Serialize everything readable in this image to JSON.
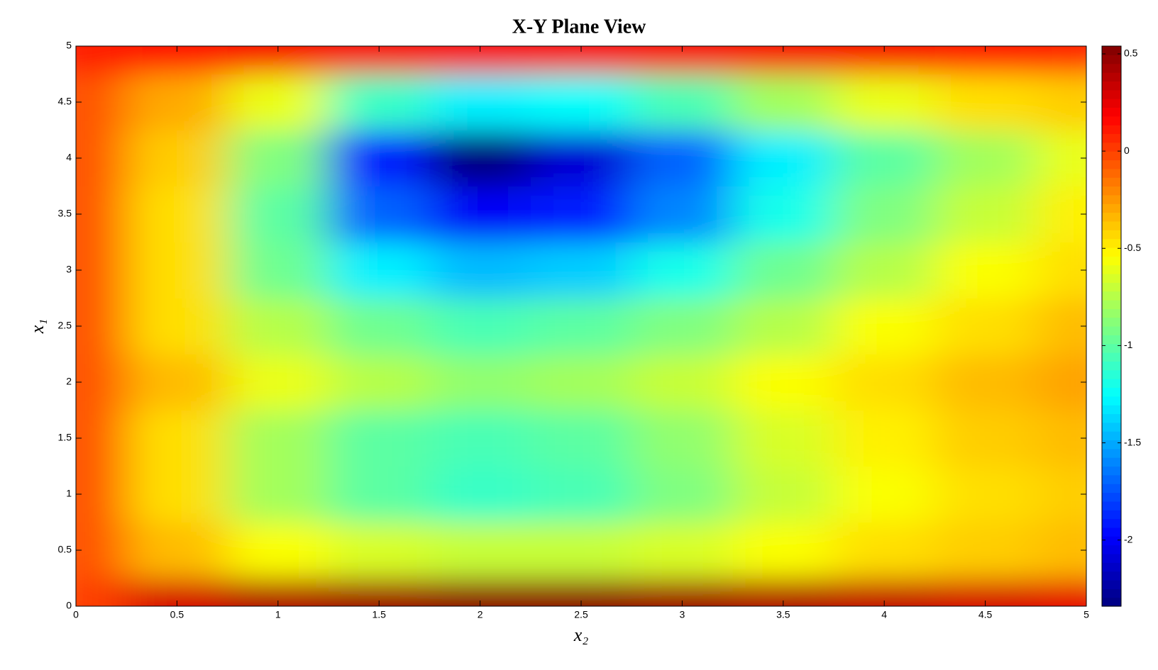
{
  "chart_data": {
    "type": "heatmap",
    "title": "X-Y Plane View",
    "xlabel": "x₂",
    "ylabel": "x₁",
    "x": [
      0,
      0.5,
      1,
      1.5,
      2,
      2.5,
      3,
      3.5,
      4,
      4.5,
      5
    ],
    "y": [
      0,
      0.5,
      1,
      1.5,
      2,
      2.5,
      3,
      3.5,
      4,
      4.5,
      5
    ],
    "z": [
      [
        0.0,
        0.3,
        0.4,
        0.45,
        0.5,
        0.5,
        0.45,
        0.4,
        0.35,
        0.3,
        0.25
      ],
      [
        -0.05,
        -0.35,
        -0.55,
        -0.65,
        -0.7,
        -0.7,
        -0.65,
        -0.55,
        -0.45,
        -0.4,
        -0.35
      ],
      [
        -0.05,
        -0.45,
        -0.8,
        -1.0,
        -1.1,
        -1.05,
        -0.9,
        -0.7,
        -0.55,
        -0.45,
        -0.4
      ],
      [
        -0.05,
        -0.45,
        -0.8,
        -1.0,
        -1.05,
        -1.0,
        -0.85,
        -0.65,
        -0.5,
        -0.4,
        -0.35
      ],
      [
        -0.05,
        -0.35,
        -0.6,
        -0.75,
        -0.85,
        -0.8,
        -0.7,
        -0.55,
        -0.45,
        -0.35,
        -0.28
      ],
      [
        -0.05,
        -0.45,
        -0.75,
        -0.95,
        -1.05,
        -1.0,
        -0.9,
        -0.75,
        -0.55,
        -0.45,
        -0.35
      ],
      [
        -0.05,
        -0.45,
        -0.95,
        -1.3,
        -1.45,
        -1.4,
        -1.2,
        -0.95,
        -0.75,
        -0.55,
        -0.45
      ],
      [
        -0.05,
        -0.45,
        -1.0,
        -1.7,
        -2.0,
        -1.9,
        -1.6,
        -1.2,
        -0.9,
        -0.7,
        -0.5
      ],
      [
        -0.05,
        -0.4,
        -0.9,
        -1.9,
        -2.34,
        -2.1,
        -1.7,
        -1.3,
        -1.0,
        -0.8,
        -0.6
      ],
      [
        -0.05,
        -0.3,
        -0.6,
        -1.1,
        -1.3,
        -1.25,
        -1.05,
        -0.8,
        -0.6,
        -0.45,
        -0.4
      ],
      [
        0.1,
        0.15,
        0.2,
        0.2,
        0.2,
        0.2,
        0.2,
        0.2,
        0.2,
        0.15,
        0.1
      ]
    ],
    "xlim": [
      0,
      5
    ],
    "ylim": [
      0,
      5
    ],
    "xticks": [
      0,
      0.5,
      1,
      1.5,
      2,
      2.5,
      3,
      3.5,
      4,
      4.5,
      5
    ],
    "yticks": [
      0,
      0.5,
      1,
      1.5,
      2,
      2.5,
      3,
      3.5,
      4,
      4.5,
      5
    ],
    "colormap": "jet",
    "clim": [
      -2.34,
      0.54
    ],
    "cticks": [
      0.5,
      0,
      -0.5,
      -1,
      -1.5,
      -2
    ]
  }
}
